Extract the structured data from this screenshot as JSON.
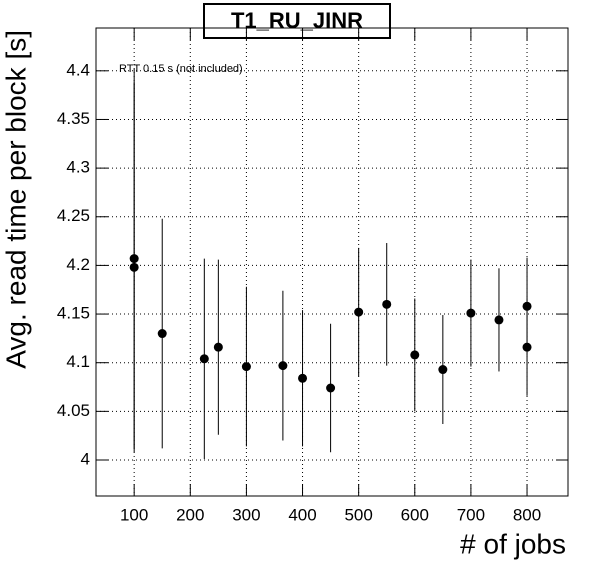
{
  "chart_data": {
    "type": "scatter",
    "title": "T1_RU_JINR",
    "annotation": "RTT 0.15 s (not included)",
    "x_label": "# of jobs",
    "y_label": "Avg. read time per block [s]",
    "x": [
      100,
      100,
      150,
      225,
      250,
      300,
      365,
      400,
      450,
      500,
      550,
      600,
      650,
      700,
      750,
      800,
      800
    ],
    "values": [
      4.207,
      4.198,
      4.13,
      4.104,
      4.116,
      4.096,
      4.097,
      4.084,
      4.074,
      4.152,
      4.16,
      4.108,
      4.093,
      4.151,
      4.144,
      4.158,
      4.116
    ],
    "errors": [
      0.195,
      0.19,
      0.118,
      0.103,
      0.09,
      0.082,
      0.077,
      0.07,
      0.066,
      0.066,
      0.063,
      0.058,
      0.056,
      0.055,
      0.053,
      0.05,
      0.05
    ],
    "color": "#000000",
    "xlim": [
      32,
      873
    ],
    "ylim": [
      3.963,
      4.444
    ],
    "xticks": [
      100,
      200,
      300,
      400,
      500,
      600,
      700,
      800
    ],
    "yticks": [
      4,
      4.05,
      4.1,
      4.15,
      4.2,
      4.25,
      4.3,
      4.35,
      4.4
    ],
    "grid": true
  }
}
